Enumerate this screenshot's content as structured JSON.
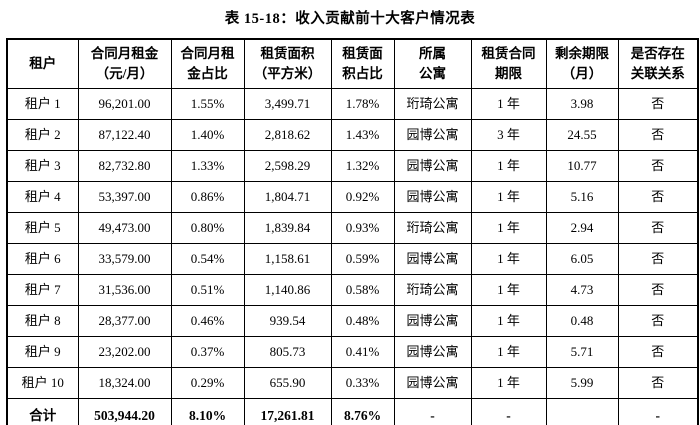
{
  "title": "表 15-18：收入贡献前十大客户情况表",
  "colors": {
    "background": "#ffffff",
    "text": "#000000",
    "border": "#000000"
  },
  "table": {
    "headers": [
      "租户",
      "合同月租金\n（元/月）",
      "合同月租\n金占比",
      "租赁面积\n（平方米）",
      "租赁面\n积占比",
      "所属\n公寓",
      "租赁合同\n期限",
      "剩余期限\n（月）",
      "是否存在\n关联关系"
    ],
    "rows": [
      {
        "is_total": false,
        "cells": [
          "租户 1",
          "96,201.00",
          "1.55%",
          "3,499.71",
          "1.78%",
          "珩琦公寓",
          "1 年",
          "3.98",
          "否"
        ]
      },
      {
        "is_total": false,
        "cells": [
          "租户 2",
          "87,122.40",
          "1.40%",
          "2,818.62",
          "1.43%",
          "园博公寓",
          "3 年",
          "24.55",
          "否"
        ]
      },
      {
        "is_total": false,
        "cells": [
          "租户 3",
          "82,732.80",
          "1.33%",
          "2,598.29",
          "1.32%",
          "园博公寓",
          "1 年",
          "10.77",
          "否"
        ]
      },
      {
        "is_total": false,
        "cells": [
          "租户 4",
          "53,397.00",
          "0.86%",
          "1,804.71",
          "0.92%",
          "园博公寓",
          "1 年",
          "5.16",
          "否"
        ]
      },
      {
        "is_total": false,
        "cells": [
          "租户 5",
          "49,473.00",
          "0.80%",
          "1,839.84",
          "0.93%",
          "珩琦公寓",
          "1 年",
          "2.94",
          "否"
        ]
      },
      {
        "is_total": false,
        "cells": [
          "租户 6",
          "33,579.00",
          "0.54%",
          "1,158.61",
          "0.59%",
          "园博公寓",
          "1 年",
          "6.05",
          "否"
        ]
      },
      {
        "is_total": false,
        "cells": [
          "租户 7",
          "31,536.00",
          "0.51%",
          "1,140.86",
          "0.58%",
          "珩琦公寓",
          "1 年",
          "4.73",
          "否"
        ]
      },
      {
        "is_total": false,
        "cells": [
          "租户 8",
          "28,377.00",
          "0.46%",
          "939.54",
          "0.48%",
          "园博公寓",
          "1 年",
          "0.48",
          "否"
        ]
      },
      {
        "is_total": false,
        "cells": [
          "租户 9",
          "23,202.00",
          "0.37%",
          "805.73",
          "0.41%",
          "园博公寓",
          "1 年",
          "5.71",
          "否"
        ]
      },
      {
        "is_total": false,
        "cells": [
          "租户 10",
          "18,324.00",
          "0.29%",
          "655.90",
          "0.33%",
          "园博公寓",
          "1 年",
          "5.99",
          "否"
        ]
      },
      {
        "is_total": true,
        "cells": [
          "合计",
          "503,944.20",
          "8.10%",
          "17,261.81",
          "8.76%",
          "-",
          "-",
          "",
          "-"
        ]
      }
    ]
  }
}
